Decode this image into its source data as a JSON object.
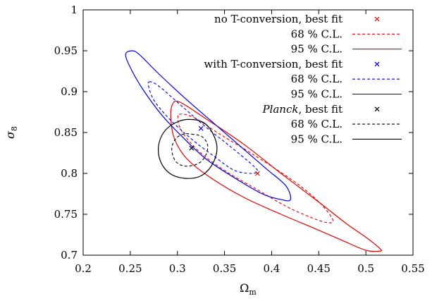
{
  "chart_data": {
    "type": "contour",
    "xlabel": "Ω",
    "xlabel_sub": "m",
    "ylabel": "σ",
    "ylabel_sub": "8",
    "xlim": [
      0.2,
      0.55
    ],
    "ylim": [
      0.7,
      1.0
    ],
    "xticks": [
      0.2,
      0.25,
      0.3,
      0.35,
      0.4,
      0.45,
      0.5,
      0.55
    ],
    "yticks": [
      0.7,
      0.75,
      0.8,
      0.85,
      0.9,
      0.95,
      1.0
    ],
    "xtick_labels": [
      "0.2",
      "0.25",
      "0.3",
      "0.35",
      "0.4",
      "0.45",
      "0.5",
      "0.55"
    ],
    "ytick_labels": [
      "0.7",
      "0.75",
      "0.8",
      "0.85",
      "0.9",
      "0.95",
      "1"
    ],
    "grid": false,
    "legend_position": "top-right",
    "legend": [
      {
        "text": "no T-conversion, best fit",
        "color": "#e00000",
        "style": "cross"
      },
      {
        "text": "68 % C.L.",
        "color": "#e00000",
        "style": "dashed"
      },
      {
        "text": "95 % C.L.",
        "color": "#e00000",
        "style": "solid"
      },
      {
        "text": "with T-conversion, best fit",
        "color": "#0000e0",
        "style": "cross"
      },
      {
        "text": "68 % C.L.",
        "color": "#0000e0",
        "style": "dashed"
      },
      {
        "text": "95 % C.L.",
        "color": "#0000e0",
        "style": "solid"
      },
      {
        "text_italic": "Planck",
        "text": ", best fit",
        "color": "#000000",
        "style": "cross"
      },
      {
        "text": "68 % C.L.",
        "color": "#000000",
        "style": "dashed"
      },
      {
        "text": "95 % C.L.",
        "color": "#000000",
        "style": "solid"
      }
    ],
    "series": [
      {
        "group": "no T-conversion",
        "color": "#e00000",
        "best_fit": [
          0.385,
          0.8
        ],
        "c68": [
          [
            0.302,
            0.872
          ],
          [
            0.318,
            0.868
          ],
          [
            0.345,
            0.848
          ],
          [
            0.375,
            0.827
          ],
          [
            0.405,
            0.805
          ],
          [
            0.43,
            0.785
          ],
          [
            0.452,
            0.763
          ],
          [
            0.465,
            0.743
          ],
          [
            0.458,
            0.74
          ],
          [
            0.44,
            0.747
          ],
          [
            0.415,
            0.76
          ],
          [
            0.385,
            0.78
          ],
          [
            0.355,
            0.8
          ],
          [
            0.33,
            0.82
          ],
          [
            0.312,
            0.84
          ],
          [
            0.302,
            0.858
          ]
        ],
        "c95": [
          [
            0.295,
            0.885
          ],
          [
            0.303,
            0.887
          ],
          [
            0.33,
            0.867
          ],
          [
            0.37,
            0.836
          ],
          [
            0.41,
            0.8
          ],
          [
            0.45,
            0.765
          ],
          [
            0.48,
            0.738
          ],
          [
            0.5,
            0.722
          ],
          [
            0.515,
            0.708
          ],
          [
            0.515,
            0.705
          ],
          [
            0.5,
            0.706
          ],
          [
            0.475,
            0.718
          ],
          [
            0.445,
            0.733
          ],
          [
            0.41,
            0.75
          ],
          [
            0.37,
            0.771
          ],
          [
            0.335,
            0.795
          ],
          [
            0.31,
            0.818
          ],
          [
            0.297,
            0.842
          ],
          [
            0.293,
            0.868
          ]
        ]
      },
      {
        "group": "with T-conversion",
        "color": "#0000e0",
        "best_fit": [
          0.325,
          0.855
        ],
        "c68": [
          [
            0.27,
            0.912
          ],
          [
            0.28,
            0.907
          ],
          [
            0.305,
            0.882
          ],
          [
            0.33,
            0.857
          ],
          [
            0.355,
            0.834
          ],
          [
            0.378,
            0.812
          ],
          [
            0.385,
            0.803
          ],
          [
            0.378,
            0.8
          ],
          [
            0.36,
            0.804
          ],
          [
            0.34,
            0.82
          ],
          [
            0.315,
            0.842
          ],
          [
            0.292,
            0.866
          ],
          [
            0.276,
            0.888
          ],
          [
            0.27,
            0.904
          ]
        ],
        "c95": [
          [
            0.245,
            0.945
          ],
          [
            0.252,
            0.95
          ],
          [
            0.26,
            0.945
          ],
          [
            0.28,
            0.922
          ],
          [
            0.31,
            0.89
          ],
          [
            0.34,
            0.86
          ],
          [
            0.37,
            0.83
          ],
          [
            0.395,
            0.805
          ],
          [
            0.415,
            0.785
          ],
          [
            0.42,
            0.768
          ],
          [
            0.41,
            0.768
          ],
          [
            0.39,
            0.775
          ],
          [
            0.36,
            0.795
          ],
          [
            0.33,
            0.818
          ],
          [
            0.305,
            0.845
          ],
          [
            0.283,
            0.872
          ],
          [
            0.265,
            0.9
          ],
          [
            0.252,
            0.925
          ]
        ]
      },
      {
        "group": "Planck",
        "color": "#000000",
        "best_fit": [
          0.315,
          0.831
        ],
        "c68": [
          [
            0.315,
            0.848
          ],
          [
            0.326,
            0.845
          ],
          [
            0.332,
            0.835
          ],
          [
            0.33,
            0.822
          ],
          [
            0.322,
            0.812
          ],
          [
            0.308,
            0.809
          ],
          [
            0.298,
            0.815
          ],
          [
            0.294,
            0.83
          ],
          [
            0.298,
            0.842
          ],
          [
            0.306,
            0.848
          ]
        ],
        "c95": [
          [
            0.312,
            0.866
          ],
          [
            0.328,
            0.862
          ],
          [
            0.338,
            0.848
          ],
          [
            0.342,
            0.83
          ],
          [
            0.337,
            0.811
          ],
          [
            0.325,
            0.797
          ],
          [
            0.308,
            0.794
          ],
          [
            0.292,
            0.8
          ],
          [
            0.282,
            0.815
          ],
          [
            0.28,
            0.834
          ],
          [
            0.286,
            0.851
          ],
          [
            0.298,
            0.862
          ]
        ]
      }
    ]
  }
}
